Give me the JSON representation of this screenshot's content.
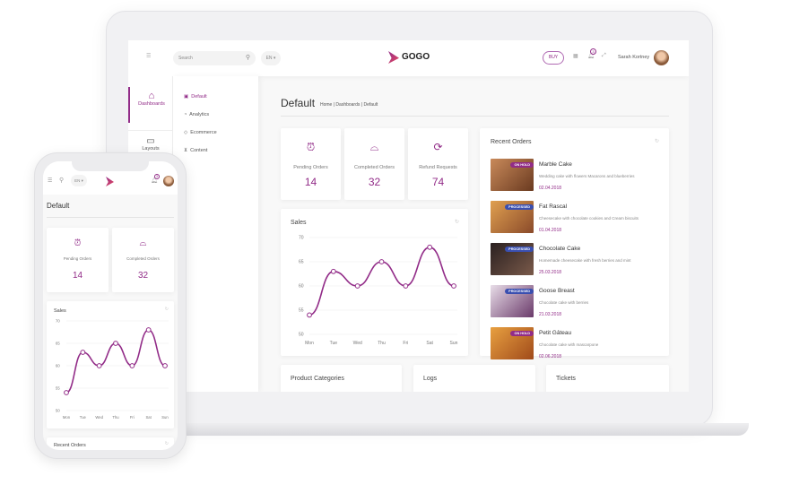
{
  "app": {
    "logo": "GOGO",
    "search_placeholder": "Search",
    "language": "EN ▾",
    "buy_label": "BUY",
    "notification_count": "3",
    "user_name": "Sarah Kortney"
  },
  "sidebar": {
    "main": [
      {
        "label": "Dashboards",
        "icon": "shop-icon",
        "active": true
      },
      {
        "label": "Layouts",
        "icon": "monitor-icon"
      }
    ],
    "sub": [
      {
        "label": "Default",
        "icon": "briefcase-icon"
      },
      {
        "label": "Analytics",
        "icon": "mouse-icon"
      },
      {
        "label": "Ecommerce",
        "icon": "tag-icon"
      },
      {
        "label": "Content",
        "icon": "cart-icon"
      }
    ]
  },
  "page": {
    "title": "Default",
    "breadcrumb": [
      "Home",
      "Dashboards",
      "Default"
    ]
  },
  "stats": [
    {
      "label": "Pending Orders",
      "value": "14",
      "icon": "alarm-clock-icon"
    },
    {
      "label": "Completed Orders",
      "value": "32",
      "icon": "basket-icon"
    },
    {
      "label": "Refund Requests",
      "value": "74",
      "icon": "refresh-icon"
    }
  ],
  "sales": {
    "title": "Sales"
  },
  "recent_orders": {
    "title": "Recent Orders",
    "items": [
      {
        "name": "Marble Cake",
        "desc": "Wedding cake with flowers Macarons and blueberries",
        "date": "02.04.2018",
        "status": "ON HOLD"
      },
      {
        "name": "Fat Rascal",
        "desc": "Cheesecake with chocolate cookies and Cream biscuits",
        "date": "01.04.2018",
        "status": "PROCESSED"
      },
      {
        "name": "Chocolate Cake",
        "desc": "Homemade cheesecake with fresh berries and mint",
        "date": "25.03.2018",
        "status": "PROCESSED"
      },
      {
        "name": "Goose Breast",
        "desc": "Chocolate cake with berries",
        "date": "21.03.2018",
        "status": "PROCESSED"
      },
      {
        "name": "Petit Gâteau",
        "desc": "Chocolate cake with mascarpone",
        "date": "02.06.2018",
        "status": "ON HOLD"
      }
    ]
  },
  "bottom_cards": [
    "Product Categories",
    "Logs",
    "Tickets"
  ],
  "colors": {
    "accent": "#922c88",
    "on_hold": "#922c88",
    "processed": "#3a4fb0"
  },
  "chart_data": {
    "type": "line",
    "title": "Sales",
    "categories": [
      "Mon",
      "Tue",
      "Wed",
      "Thu",
      "Fri",
      "Sat",
      "Sun"
    ],
    "values": [
      54,
      63,
      60,
      65,
      60,
      68,
      60
    ],
    "ylim": [
      50,
      70
    ],
    "yticks": [
      50,
      55,
      60,
      65,
      70
    ],
    "grid": true
  }
}
